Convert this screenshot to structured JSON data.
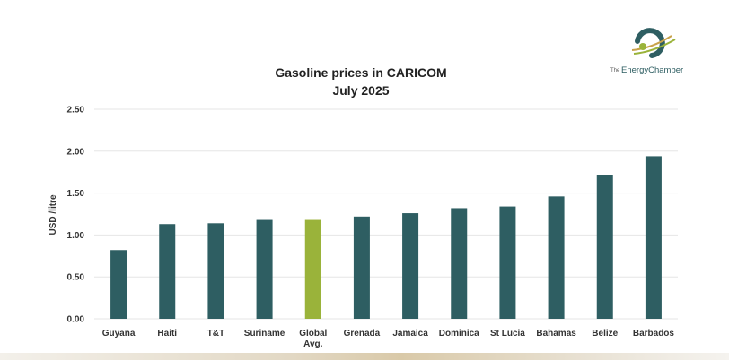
{
  "chart_data": {
    "type": "bar",
    "title": "Gasoline prices in CARICOM",
    "subtitle": "July 2025",
    "xlabel": "",
    "ylabel": "USD /litre",
    "ylim": [
      0,
      2.5
    ],
    "yticks": [
      "0.00",
      "0.50",
      "1.00",
      "1.50",
      "2.00",
      "2.50"
    ],
    "grid": true,
    "categories": [
      [
        "Guyana"
      ],
      [
        "Haiti"
      ],
      [
        "T&T"
      ],
      [
        "Suriname"
      ],
      [
        "Global",
        "Avg."
      ],
      [
        "Grenada"
      ],
      [
        "Jamaica"
      ],
      [
        "Dominica"
      ],
      [
        "St Lucia"
      ],
      [
        "Bahamas"
      ],
      [
        "Belize"
      ],
      [
        "Barbados"
      ]
    ],
    "values": [
      0.82,
      1.13,
      1.14,
      1.18,
      1.18,
      1.22,
      1.26,
      1.32,
      1.34,
      1.46,
      1.72,
      1.94
    ],
    "colors": {
      "bar": "#2e5e62",
      "highlight": "#9ab33a",
      "grid": "#e6e6e6"
    },
    "highlight_index": 4
  },
  "logo": {
    "prefix": "The",
    "name": "EnergyChamber",
    "colors": {
      "primary": "#2e5e62",
      "accent": "#9ab33a",
      "gold": "#c9a24a"
    }
  }
}
